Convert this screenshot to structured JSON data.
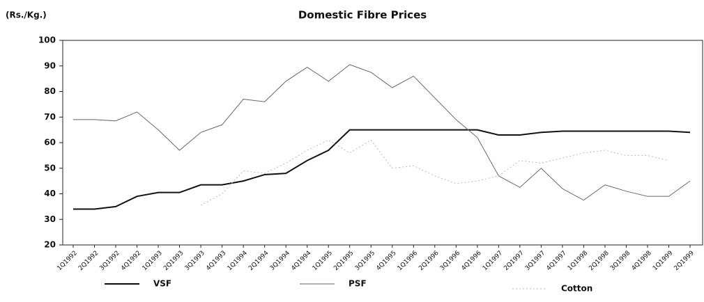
{
  "chart_data": {
    "type": "line",
    "title": "Domestic Fibre Prices",
    "y_label": "(Rs./Kg.)",
    "categories": [
      "1Q1992",
      "2Q1992",
      "3Q1992",
      "4Q1992",
      "1Q1993",
      "2Q1993",
      "3Q1993",
      "4Q1993",
      "1Q1994",
      "2Q1994",
      "3Q1994",
      "4Q1994",
      "1Q1995",
      "2Q1995",
      "3Q1995",
      "4Q1995",
      "1Q1996",
      "2Q1996",
      "3Q1996",
      "4Q1996",
      "1Q1997",
      "2Q1997",
      "3Q1997",
      "4Q1997",
      "1Q1998",
      "2Q1998",
      "3Q1998",
      "4Q1998",
      "1Q1999",
      "2Q1999"
    ],
    "series": [
      {
        "name": "VSF",
        "color": "#111111",
        "values": [
          34,
          34,
          35,
          39,
          40.5,
          40.5,
          43.5,
          43.5,
          45,
          47.5,
          48,
          53,
          57,
          65,
          65,
          65,
          65,
          65,
          65,
          65,
          63,
          63,
          64,
          64.5,
          64.5,
          64.5,
          64.5,
          64.5,
          64.5,
          64
        ]
      },
      {
        "name": "PSF",
        "color": "#666666",
        "values": [
          69,
          69,
          68.5,
          72,
          65,
          57,
          64,
          67,
          77,
          76,
          84,
          89.5,
          84,
          90.5,
          87.5,
          81.5,
          86,
          77.5,
          69,
          62,
          47,
          42.5,
          50,
          42,
          37.5,
          43.5,
          41,
          39,
          39,
          45
        ]
      },
      {
        "name": "Cotton",
        "color": "#bbbbbb",
        "values": [
          null,
          null,
          null,
          null,
          null,
          null,
          35.5,
          40,
          49,
          48,
          52,
          57,
          61,
          56,
          61,
          50,
          51,
          47,
          44,
          45,
          47,
          53,
          52,
          54,
          56,
          57,
          55,
          55,
          53,
          null
        ]
      }
    ],
    "ylim": [
      20,
      100
    ],
    "yticks": [
      20,
      30,
      40,
      50,
      60,
      70,
      80,
      90,
      100
    ]
  }
}
